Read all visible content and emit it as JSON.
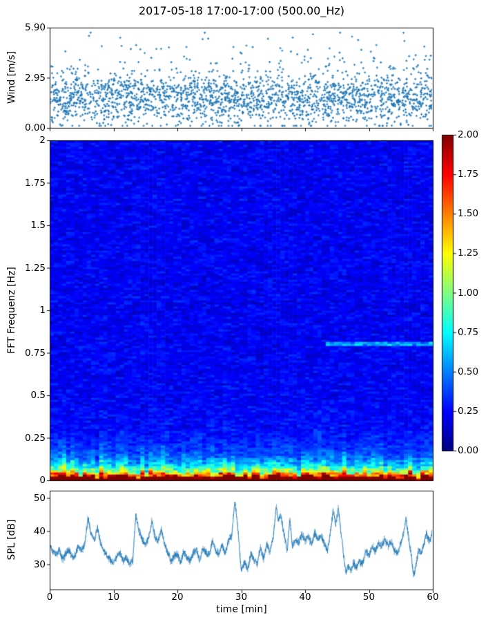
{
  "figure": {
    "title": "2017-05-18 17:00-17:00 (500.00_Hz)",
    "xlabel": "time [min]",
    "background": "#ffffff",
    "frame_color": "#000000",
    "accent_color": "#1f77b4",
    "xlim": [
      0,
      60
    ],
    "xticks": [
      0,
      10,
      20,
      30,
      40,
      50,
      60
    ],
    "xtick_labels": [
      "0",
      "10",
      "20",
      "30",
      "40",
      "50",
      "60"
    ]
  },
  "chart_data": [
    {
      "id": "wind",
      "type": "scatter",
      "ylabel": "Wind [m/s]",
      "marker": "+",
      "color": "#1f77b4",
      "xlim": [
        0,
        60
      ],
      "ylim": [
        0,
        5.9
      ],
      "yticks": [
        0,
        2.95,
        5.9
      ],
      "ytick_labels": [
        "0.00",
        "2.95",
        "5.90"
      ],
      "n_points": 2250,
      "y_mean": 1.75,
      "y_std": 0.8,
      "y_min": 0.12,
      "y_max": 5.6,
      "outlier_fraction": 0.06,
      "seed": 20170518
    },
    {
      "id": "spectrogram",
      "type": "heatmap",
      "ylabel": "FFT Frequenz [Hz]",
      "colormap": "jet",
      "xlim": [
        0,
        60
      ],
      "ylim": [
        0,
        2
      ],
      "clim": [
        0,
        2
      ],
      "yticks": [
        0,
        0.25,
        0.5,
        0.75,
        1,
        1.25,
        1.5,
        1.75,
        2
      ],
      "ytick_labels": [
        "0",
        "0.25",
        "0.5",
        "0.75",
        "1",
        "1.25",
        "1.5",
        "1.75",
        "2"
      ],
      "grid_cols": 93,
      "grid_rows": 164,
      "base_value": 0.1,
      "noise_fine": 0.13,
      "noise_coarse": 0.13,
      "low_freq_profile": [
        {
          "amp": 2.4,
          "decay": 0.016
        },
        {
          "amp": 1.5,
          "decay": 0.05
        },
        {
          "amp": 0.5,
          "decay": 0.12
        }
      ],
      "streak": {
        "freq": 0.8,
        "halfwidth": 0.011,
        "t_start": 43,
        "t_end": 60,
        "amp": 0.22,
        "amp_rand": 0.28
      },
      "seed": 971
    },
    {
      "id": "colorbar",
      "type": "colorbar",
      "colormap": "jet",
      "range": [
        0,
        2
      ],
      "ticks": [
        0,
        0.25,
        0.5,
        0.75,
        1,
        1.25,
        1.5,
        1.75,
        2
      ],
      "tick_labels": [
        "0.00",
        "0.25",
        "0.50",
        "0.75",
        "1.00",
        "1.25",
        "1.50",
        "1.75",
        "2.00"
      ]
    },
    {
      "id": "spl",
      "type": "line",
      "ylabel": "SPL [dB]",
      "color": "#1f77b4",
      "xlim": [
        0,
        60
      ],
      "ylim": [
        22.4,
        52.2
      ],
      "yticks": [
        30,
        40,
        50
      ],
      "ytick_labels": [
        "30",
        "40",
        "50"
      ],
      "noise_amp": 1.3,
      "noise_fine": 0.5,
      "samples": 1500,
      "seed": 55,
      "keypoints": [
        [
          0,
          36.5
        ],
        [
          0.5,
          34
        ],
        [
          1,
          33
        ],
        [
          1.5,
          34.5
        ],
        [
          2,
          31.5
        ],
        [
          2.5,
          33
        ],
        [
          3,
          34.5
        ],
        [
          3.5,
          32
        ],
        [
          4,
          33
        ],
        [
          4.5,
          35.5
        ],
        [
          5,
          34
        ],
        [
          5.5,
          36
        ],
        [
          6,
          44
        ],
        [
          6.5,
          39
        ],
        [
          7,
          37.5
        ],
        [
          7.5,
          41
        ],
        [
          8,
          36
        ],
        [
          8.5,
          34
        ],
        [
          9,
          32.5
        ],
        [
          9.5,
          31.5
        ],
        [
          10,
          30.5
        ],
        [
          10.5,
          32
        ],
        [
          11,
          33.5
        ],
        [
          11.5,
          31
        ],
        [
          12,
          32
        ],
        [
          12.5,
          30
        ],
        [
          13,
          31
        ],
        [
          13.5,
          45
        ],
        [
          14,
          40
        ],
        [
          14.5,
          37.5
        ],
        [
          15,
          36
        ],
        [
          15.5,
          38
        ],
        [
          16,
          43
        ],
        [
          16.5,
          38
        ],
        [
          17,
          37
        ],
        [
          17.5,
          40.5
        ],
        [
          18,
          36
        ],
        [
          18.5,
          33.5
        ],
        [
          19,
          31
        ],
        [
          19.5,
          32.5
        ],
        [
          20,
          33
        ],
        [
          20.5,
          30.5
        ],
        [
          21,
          34
        ],
        [
          21.5,
          32
        ],
        [
          22,
          31
        ],
        [
          22.5,
          33.5
        ],
        [
          23,
          34.5
        ],
        [
          23.5,
          31
        ],
        [
          24,
          35
        ],
        [
          24.5,
          33.5
        ],
        [
          25,
          33
        ],
        [
          25.5,
          37
        ],
        [
          26,
          34
        ],
        [
          26.5,
          33
        ],
        [
          27,
          36
        ],
        [
          27.5,
          33.5
        ],
        [
          28,
          37
        ],
        [
          28.5,
          38.5
        ],
        [
          29,
          49
        ],
        [
          29.3,
          44
        ],
        [
          29.6,
          38
        ],
        [
          30,
          28
        ],
        [
          30.5,
          30.5
        ],
        [
          31,
          28.5
        ],
        [
          31.5,
          33
        ],
        [
          32,
          31.5
        ],
        [
          32.5,
          30
        ],
        [
          33,
          35
        ],
        [
          33.5,
          31.5
        ],
        [
          34,
          36
        ],
        [
          34.5,
          33.5
        ],
        [
          35,
          38
        ],
        [
          35.5,
          47.5
        ],
        [
          35.8,
          43
        ],
        [
          36.2,
          45
        ],
        [
          36.6,
          40
        ],
        [
          37,
          36.5
        ],
        [
          37.2,
          34
        ],
        [
          37.6,
          44
        ],
        [
          38,
          35.5
        ],
        [
          38.4,
          37
        ],
        [
          39,
          36.5
        ],
        [
          39.5,
          39
        ],
        [
          40,
          37
        ],
        [
          40.5,
          38.5
        ],
        [
          41,
          36
        ],
        [
          41.5,
          39.5
        ],
        [
          42,
          37.5
        ],
        [
          42.5,
          38.5
        ],
        [
          43,
          36.5
        ],
        [
          43.5,
          34
        ],
        [
          44,
          40
        ],
        [
          44.4,
          46
        ],
        [
          44.8,
          42
        ],
        [
          45.2,
          47
        ],
        [
          45.6,
          40
        ],
        [
          46,
          33
        ],
        [
          46.4,
          27.5
        ],
        [
          46.8,
          29.5
        ],
        [
          47.2,
          28
        ],
        [
          47.6,
          30.5
        ],
        [
          48,
          29
        ],
        [
          48.5,
          31
        ],
        [
          49,
          30
        ],
        [
          49.5,
          34
        ],
        [
          50,
          32.5
        ],
        [
          50.5,
          35.5
        ],
        [
          51,
          34
        ],
        [
          51.5,
          36.5
        ],
        [
          52,
          35.5
        ],
        [
          52.5,
          37.5
        ],
        [
          53,
          35.5
        ],
        [
          53.5,
          37
        ],
        [
          54,
          34
        ],
        [
          54.5,
          33.5
        ],
        [
          55,
          36.5
        ],
        [
          55.4,
          39
        ],
        [
          55.8,
          44
        ],
        [
          56.2,
          38
        ],
        [
          56.6,
          33
        ],
        [
          57,
          26.5
        ],
        [
          57.4,
          30
        ],
        [
          57.8,
          34.5
        ],
        [
          58.2,
          33
        ],
        [
          58.6,
          36
        ],
        [
          59,
          39.5
        ],
        [
          59.4,
          37
        ],
        [
          59.7,
          38
        ],
        [
          60,
          40.5
        ]
      ]
    }
  ]
}
